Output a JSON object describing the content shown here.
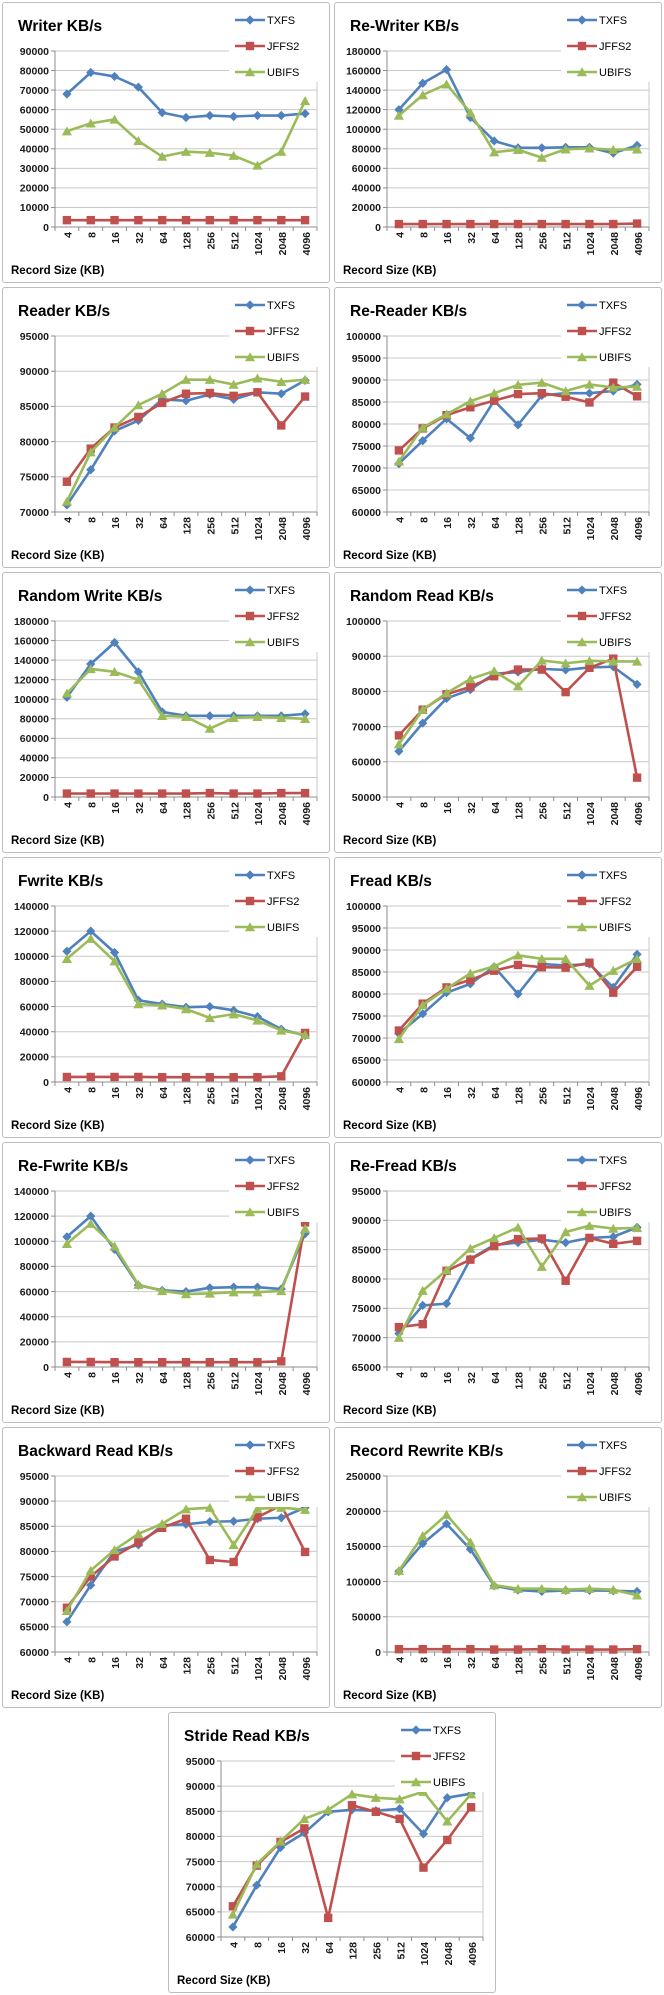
{
  "page": {
    "background": "#ffffff",
    "border_color": "#bdbdbd"
  },
  "shared": {
    "categories": [
      "4",
      "8",
      "16",
      "32",
      "64",
      "128",
      "256",
      "512",
      "1024",
      "2048",
      "4096"
    ],
    "xlabel": "Record Size (KB)",
    "grid": true,
    "legend_position": "top-right"
  },
  "legend": {
    "entries": [
      {
        "label": "TXFS",
        "color": "#4F81BD",
        "marker": "diamond"
      },
      {
        "label": "JFFS2",
        "color": "#C0504D",
        "marker": "square"
      },
      {
        "label": "UBIFS",
        "color": "#9BBB59",
        "marker": "triangle"
      }
    ]
  },
  "style": {
    "gridline_color": "#c9c9c9",
    "axis_color": "#8c8c8c",
    "title_color": "#000000",
    "tick_color": "#1a1a1a"
  },
  "chart_data": [
    {
      "type": "line",
      "title": "Writer KB/s",
      "ylim": [
        0,
        90000
      ],
      "ystep": 10000,
      "series": [
        {
          "name": "TXFS",
          "values": [
            68000,
            79000,
            77000,
            71500,
            58500,
            56000,
            57000,
            56500,
            57000,
            57000,
            58000
          ]
        },
        {
          "name": "JFFS2",
          "values": [
            3500,
            3500,
            3500,
            3500,
            3500,
            3500,
            3500,
            3500,
            3500,
            3500,
            3500
          ]
        },
        {
          "name": "UBIFS",
          "values": [
            49000,
            53000,
            55000,
            44000,
            36000,
            38500,
            38000,
            36500,
            31500,
            38500,
            64500
          ]
        }
      ]
    },
    {
      "type": "line",
      "title": "Re-Writer KB/s",
      "ylim": [
        0,
        180000
      ],
      "ystep": 20000,
      "series": [
        {
          "name": "TXFS",
          "values": [
            120000,
            147000,
            161000,
            112000,
            88000,
            81000,
            81000,
            81500,
            81500,
            75500,
            83500
          ]
        },
        {
          "name": "JFFS2",
          "values": [
            3000,
            3000,
            3000,
            3000,
            3000,
            3000,
            3000,
            3000,
            3000,
            3000,
            3500
          ]
        },
        {
          "name": "UBIFS",
          "values": [
            114000,
            135000,
            146000,
            117000,
            76500,
            79000,
            71000,
            79500,
            80500,
            79000,
            79500
          ]
        }
      ]
    },
    {
      "type": "line",
      "title": "Reader KB/s",
      "ylim": [
        70000,
        95000
      ],
      "ystep": 5000,
      "series": [
        {
          "name": "TXFS",
          "values": [
            71000,
            76000,
            81500,
            83000,
            86000,
            85800,
            86700,
            86000,
            87000,
            86800,
            88700
          ]
        },
        {
          "name": "JFFS2",
          "values": [
            74300,
            79000,
            82000,
            83500,
            85500,
            86800,
            86900,
            86500,
            87000,
            82300,
            86400
          ]
        },
        {
          "name": "UBIFS",
          "values": [
            71500,
            78500,
            82000,
            85200,
            86800,
            88800,
            88800,
            88100,
            89000,
            88500,
            88800
          ]
        }
      ]
    },
    {
      "type": "line",
      "title": "Re-Reader KB/s",
      "ylim": [
        60000,
        100000
      ],
      "ystep": 5000,
      "series": [
        {
          "name": "TXFS",
          "values": [
            71000,
            76200,
            81200,
            76800,
            85300,
            79800,
            86500,
            87000,
            87000,
            87500,
            89000
          ]
        },
        {
          "name": "JFFS2",
          "values": [
            74000,
            79000,
            82000,
            83800,
            85300,
            86800,
            87000,
            86200,
            84900,
            89400,
            86300
          ]
        },
        {
          "name": "UBIFS",
          "values": [
            71500,
            79200,
            82200,
            85200,
            87000,
            88900,
            89400,
            87500,
            89000,
            88300,
            88500
          ]
        }
      ]
    },
    {
      "type": "line",
      "title": "Random Write KB/s",
      "ylim": [
        0,
        180000
      ],
      "ystep": 20000,
      "series": [
        {
          "name": "TXFS",
          "values": [
            102000,
            136000,
            158000,
            128000,
            87000,
            83000,
            83000,
            83000,
            83000,
            83000,
            85000
          ]
        },
        {
          "name": "JFFS2",
          "values": [
            3500,
            3500,
            3500,
            3500,
            3500,
            3500,
            4000,
            3500,
            3500,
            4000,
            4000
          ]
        },
        {
          "name": "UBIFS",
          "values": [
            106000,
            131000,
            128000,
            120000,
            83000,
            82000,
            70000,
            81000,
            82000,
            81000,
            80000
          ]
        }
      ]
    },
    {
      "type": "line",
      "title": "Random Read KB/s",
      "ylim": [
        50000,
        100000
      ],
      "ystep": 10000,
      "series": [
        {
          "name": "TXFS",
          "values": [
            63000,
            71000,
            78000,
            80500,
            85000,
            85500,
            86400,
            86100,
            86800,
            87000,
            82000
          ]
        },
        {
          "name": "JFFS2",
          "values": [
            67500,
            74800,
            79200,
            81300,
            84300,
            86200,
            86200,
            79800,
            86700,
            89300,
            55500
          ]
        },
        {
          "name": "UBIFS",
          "values": [
            65000,
            74800,
            79500,
            83500,
            85800,
            81500,
            88800,
            88000,
            88700,
            88500,
            88500
          ]
        }
      ]
    },
    {
      "type": "line",
      "title": "Fwrite KB/s",
      "ylim": [
        0,
        140000
      ],
      "ystep": 20000,
      "series": [
        {
          "name": "TXFS",
          "values": [
            104000,
            120000,
            103000,
            65000,
            62000,
            59500,
            60000,
            57000,
            52000,
            42000,
            37000
          ]
        },
        {
          "name": "JFFS2",
          "values": [
            4000,
            4000,
            4000,
            4000,
            3800,
            3800,
            3800,
            3800,
            3800,
            4500,
            39000
          ]
        },
        {
          "name": "UBIFS",
          "values": [
            98000,
            114000,
            96000,
            62000,
            61000,
            58000,
            51000,
            54000,
            49000,
            41000,
            37500
          ]
        }
      ]
    },
    {
      "type": "line",
      "title": "Fread KB/s",
      "ylim": [
        60000,
        100000
      ],
      "ystep": 5000,
      "series": [
        {
          "name": "TXFS",
          "values": [
            71000,
            75500,
            80300,
            82300,
            86200,
            80000,
            86800,
            86500,
            86800,
            81500,
            89000
          ]
        },
        {
          "name": "JFFS2",
          "values": [
            71700,
            77800,
            81500,
            83200,
            85300,
            86600,
            86100,
            86000,
            87100,
            80300,
            86200
          ]
        },
        {
          "name": "UBIFS",
          "values": [
            69800,
            77500,
            81200,
            84700,
            86300,
            88800,
            88000,
            88000,
            81900,
            85300,
            88000
          ]
        }
      ]
    },
    {
      "type": "line",
      "title": "Re-Fwrite KB/s",
      "ylim": [
        0,
        140000
      ],
      "ystep": 20000,
      "series": [
        {
          "name": "TXFS",
          "values": [
            103500,
            120000,
            93500,
            65000,
            61000,
            60000,
            63000,
            63500,
            63500,
            62000,
            106000
          ]
        },
        {
          "name": "JFFS2",
          "values": [
            4000,
            4000,
            3800,
            3800,
            3800,
            3800,
            3800,
            3800,
            3800,
            4500,
            115000
          ]
        },
        {
          "name": "UBIFS",
          "values": [
            98000,
            114000,
            96000,
            65500,
            60500,
            58000,
            58500,
            59500,
            59500,
            60500,
            110000
          ]
        }
      ]
    },
    {
      "type": "line",
      "title": "Re-Fread KB/s",
      "ylim": [
        65000,
        95000
      ],
      "ystep": 5000,
      "series": [
        {
          "name": "TXFS",
          "values": [
            70700,
            75500,
            75800,
            83400,
            85800,
            86200,
            86700,
            86200,
            87000,
            87200,
            88800
          ]
        },
        {
          "name": "JFFS2",
          "values": [
            71800,
            72300,
            81400,
            83300,
            85600,
            86800,
            86900,
            79700,
            87000,
            86000,
            86500
          ]
        },
        {
          "name": "UBIFS",
          "values": [
            70000,
            78000,
            81500,
            85200,
            87000,
            88800,
            82100,
            88000,
            89100,
            88600,
            88700
          ]
        }
      ]
    },
    {
      "type": "line",
      "title": "Backward Read KB/s",
      "ylim": [
        60000,
        95000
      ],
      "ystep": 5000,
      "series": [
        {
          "name": "TXFS",
          "values": [
            66000,
            73300,
            80000,
            81300,
            85200,
            85400,
            85900,
            86000,
            86500,
            86700,
            88700
          ]
        },
        {
          "name": "JFFS2",
          "values": [
            68800,
            75000,
            79000,
            81800,
            84700,
            86500,
            78300,
            77900,
            86800,
            89200,
            79900
          ]
        },
        {
          "name": "UBIFS",
          "values": [
            68200,
            76200,
            80300,
            83500,
            85500,
            88400,
            88700,
            81300,
            88500,
            88700,
            88300
          ]
        }
      ]
    },
    {
      "type": "line",
      "title": "Record Rewrite KB/s",
      "ylim": [
        0,
        250000
      ],
      "ystep": 50000,
      "series": [
        {
          "name": "TXFS",
          "values": [
            114500,
            154000,
            182000,
            146000,
            94000,
            88000,
            86000,
            87500,
            87500,
            87000,
            86000
          ]
        },
        {
          "name": "JFFS2",
          "values": [
            4000,
            4000,
            4000,
            4000,
            3500,
            3500,
            4000,
            3500,
            3500,
            3500,
            4000
          ]
        },
        {
          "name": "UBIFS",
          "values": [
            115500,
            165000,
            195000,
            156000,
            95000,
            90000,
            90000,
            88500,
            90000,
            88500,
            80500
          ]
        }
      ]
    },
    {
      "type": "line",
      "title": "Stride Read KB/s",
      "ylim": [
        60000,
        95000
      ],
      "ystep": 5000,
      "series": [
        {
          "name": "TXFS",
          "values": [
            62000,
            70300,
            77800,
            80700,
            84900,
            85300,
            85100,
            85500,
            80500,
            87700,
            88500
          ]
        },
        {
          "name": "JFFS2",
          "values": [
            66100,
            74200,
            78900,
            81600,
            63800,
            86200,
            84900,
            83500,
            73800,
            79300,
            85800
          ]
        },
        {
          "name": "UBIFS",
          "values": [
            64500,
            74500,
            79000,
            83500,
            85300,
            88400,
            87700,
            87400,
            88900,
            83000,
            88400
          ]
        }
      ]
    }
  ]
}
